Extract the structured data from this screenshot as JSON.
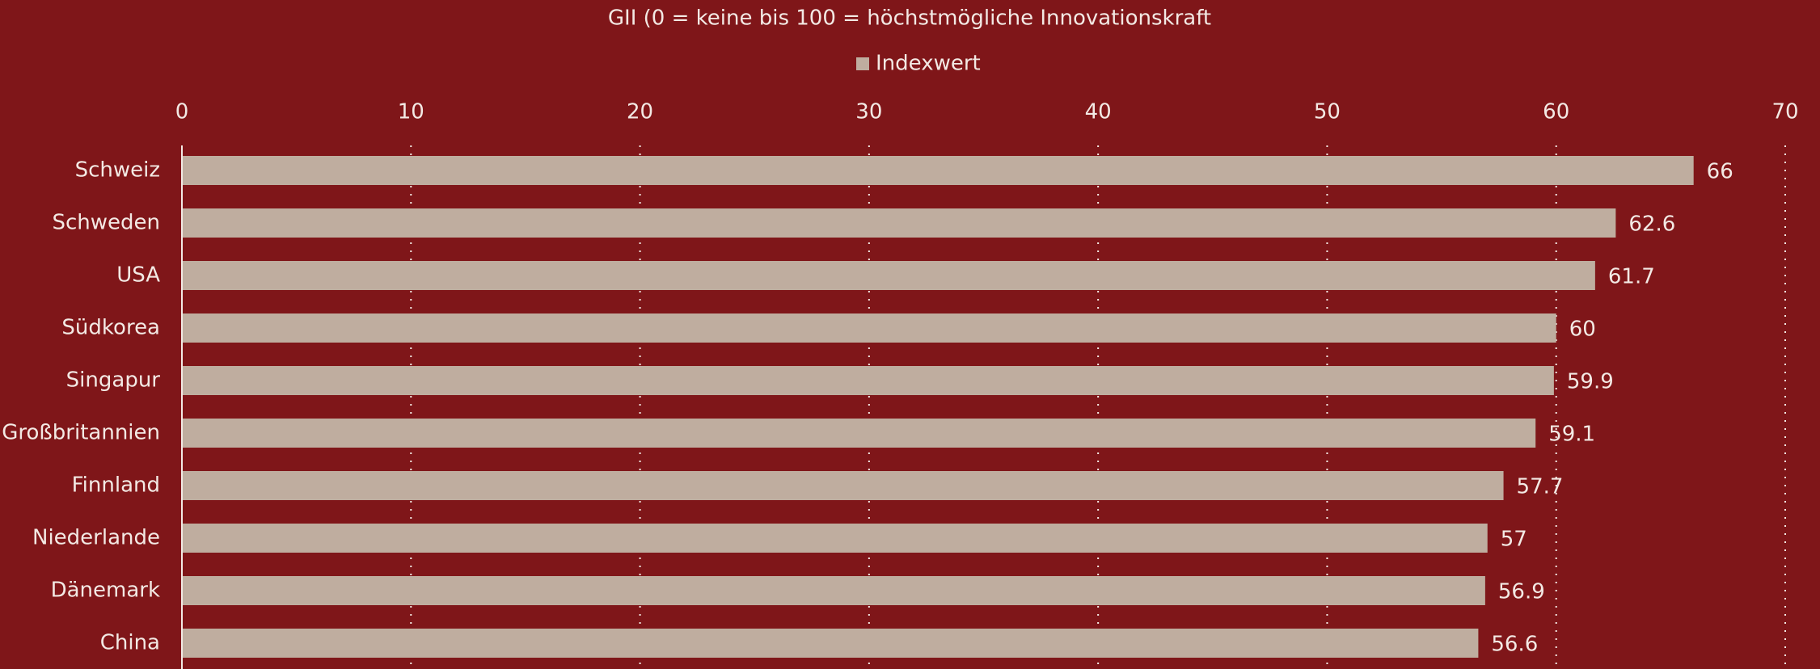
{
  "chart_data": {
    "type": "hbar",
    "title": "GII (0 = keine bis 100 = höchstmögliche Innovationskraft",
    "categories": [
      "Schweiz",
      "Schweden",
      "USA",
      "Südkorea",
      "Singapur",
      "Großbritannien",
      "Finnland",
      "Niederlande",
      "Dänemark",
      "China"
    ],
    "series": [
      {
        "name": "Indexwert",
        "color": "#bfad9f",
        "values": [
          66,
          62.6,
          61.7,
          60,
          59.9,
          59.1,
          57.7,
          57,
          56.9,
          56.6
        ]
      }
    ],
    "xlim": [
      0,
      70
    ],
    "xticks": [
      0,
      10,
      20,
      30,
      40,
      50,
      60,
      70
    ],
    "grid": true,
    "legend": "top"
  }
}
